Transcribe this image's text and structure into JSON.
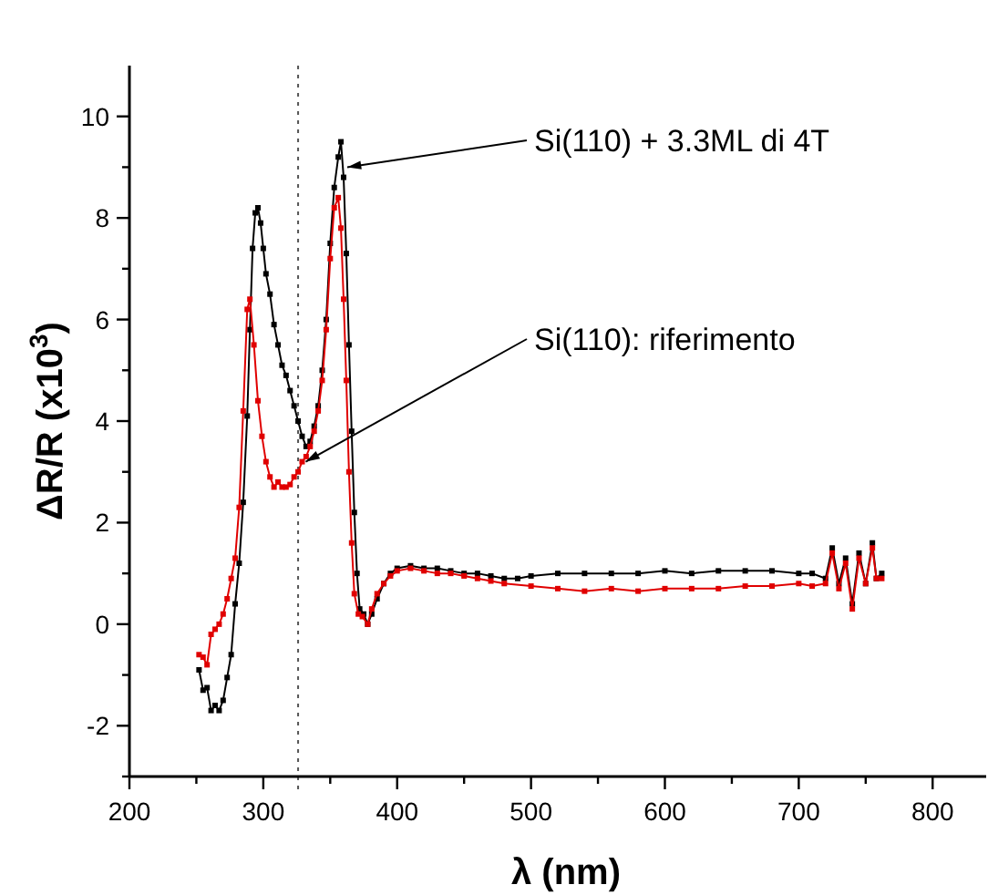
{
  "chart_data": {
    "type": "line",
    "xlabel": "λ (nm)",
    "ylabel": "ΔR/R (x10$^{3}$)",
    "xlim": [
      200,
      840
    ],
    "xticks": [
      200,
      {
        "value": 250,
        "label": null
      },
      300,
      {
        "value": 350,
        "label": null
      },
      400,
      {
        "value": 450,
        "label": null
      },
      500,
      {
        "value": 550,
        "label": null
      },
      600,
      {
        "value": 650,
        "label": null
      },
      700,
      {
        "value": 750,
        "label": null
      },
      800
    ],
    "ylim": [
      -3,
      11
    ],
    "yticks": [
      {
        "value": -3,
        "label": null
      },
      -2,
      {
        "value": -1,
        "label": null
      },
      0,
      {
        "value": 1,
        "label": null
      },
      2,
      {
        "value": 3,
        "label": null
      },
      4,
      {
        "value": 5,
        "label": null
      },
      6,
      {
        "value": 7,
        "label": null
      },
      8,
      {
        "value": 9,
        "label": null
      },
      10
    ],
    "grid": false,
    "marker": "square",
    "line_style": "solid",
    "ref_lines": [
      {
        "axis": "x",
        "value": 326,
        "line_style": "dotted",
        "color": "#555555"
      }
    ],
    "annotations": [
      {
        "text": "Si(110) + 3.3ML di 4T",
        "x": 360,
        "y": 9.0
      },
      {
        "text": "Si(110): riferimento",
        "x": 329,
        "y": 3.2
      }
    ],
    "series": [
      {
        "color": "#000000",
        "x": [
          252,
          255,
          258,
          261,
          264,
          267,
          270,
          273,
          276,
          279,
          282,
          285,
          288,
          290,
          292,
          294,
          296,
          298,
          300,
          302,
          305,
          308,
          311,
          314,
          317,
          320,
          323,
          326,
          329,
          332,
          335,
          338,
          341,
          344,
          347,
          350,
          353,
          356,
          358,
          360,
          362,
          364,
          366,
          368,
          370,
          372,
          375,
          378,
          381,
          385,
          390,
          395,
          400,
          410,
          420,
          430,
          440,
          450,
          460,
          470,
          480,
          490,
          500,
          520,
          540,
          560,
          580,
          600,
          620,
          640,
          660,
          680,
          700,
          710,
          720,
          725,
          730,
          735,
          740,
          745,
          750,
          755,
          758,
          762
        ],
        "values": [
          -0.9,
          -1.3,
          -1.25,
          -1.7,
          -1.6,
          -1.7,
          -1.5,
          -1.05,
          -0.6,
          0.4,
          1.2,
          2.4,
          4.1,
          5.8,
          7.4,
          8.1,
          8.2,
          7.9,
          7.4,
          6.9,
          6.5,
          5.9,
          5.5,
          5.1,
          4.9,
          4.6,
          4.3,
          4.0,
          3.7,
          3.5,
          3.6,
          3.9,
          4.3,
          5.0,
          6.0,
          7.5,
          8.6,
          9.2,
          9.5,
          8.8,
          7.3,
          5.5,
          3.8,
          2.2,
          1.0,
          0.3,
          0.2,
          0.0,
          0.2,
          0.5,
          0.8,
          1.0,
          1.1,
          1.15,
          1.1,
          1.1,
          1.05,
          1.0,
          1.0,
          0.95,
          0.9,
          0.9,
          0.95,
          1.0,
          1.0,
          1.0,
          1.0,
          1.05,
          1.0,
          1.05,
          1.05,
          1.05,
          1.0,
          1.0,
          0.9,
          1.5,
          0.8,
          1.3,
          0.4,
          1.4,
          0.8,
          1.6,
          0.9,
          1.0
        ]
      },
      {
        "color": "#e00000",
        "x": [
          252,
          255,
          258,
          261,
          264,
          267,
          270,
          273,
          276,
          279,
          282,
          285,
          288,
          290,
          293,
          296,
          299,
          302,
          305,
          308,
          311,
          314,
          317,
          320,
          323,
          326,
          329,
          332,
          335,
          338,
          341,
          344,
          347,
          350,
          353,
          356,
          358,
          360,
          362,
          364,
          366,
          368,
          371,
          374,
          378,
          381,
          385,
          390,
          395,
          400,
          410,
          420,
          430,
          440,
          450,
          460,
          470,
          480,
          500,
          520,
          540,
          560,
          580,
          600,
          620,
          640,
          660,
          680,
          700,
          710,
          720,
          725,
          730,
          735,
          740,
          745,
          750,
          755,
          758,
          762
        ],
        "values": [
          -0.6,
          -0.65,
          -0.8,
          -0.2,
          -0.1,
          0.0,
          0.2,
          0.5,
          0.9,
          1.3,
          2.3,
          4.2,
          6.2,
          6.4,
          5.5,
          4.4,
          3.7,
          3.2,
          2.9,
          2.7,
          2.8,
          2.7,
          2.7,
          2.75,
          2.9,
          3.0,
          3.2,
          3.3,
          3.5,
          3.8,
          4.2,
          4.8,
          5.8,
          7.2,
          8.2,
          8.4,
          7.8,
          6.4,
          4.8,
          3.0,
          1.6,
          0.6,
          0.2,
          0.15,
          0.0,
          0.3,
          0.6,
          0.8,
          0.95,
          1.05,
          1.1,
          1.05,
          1.0,
          1.0,
          0.95,
          0.9,
          0.85,
          0.8,
          0.75,
          0.7,
          0.65,
          0.7,
          0.65,
          0.7,
          0.7,
          0.7,
          0.75,
          0.75,
          0.8,
          0.75,
          0.8,
          1.4,
          0.7,
          1.2,
          0.3,
          1.3,
          0.8,
          1.5,
          0.9,
          0.9
        ]
      }
    ]
  }
}
